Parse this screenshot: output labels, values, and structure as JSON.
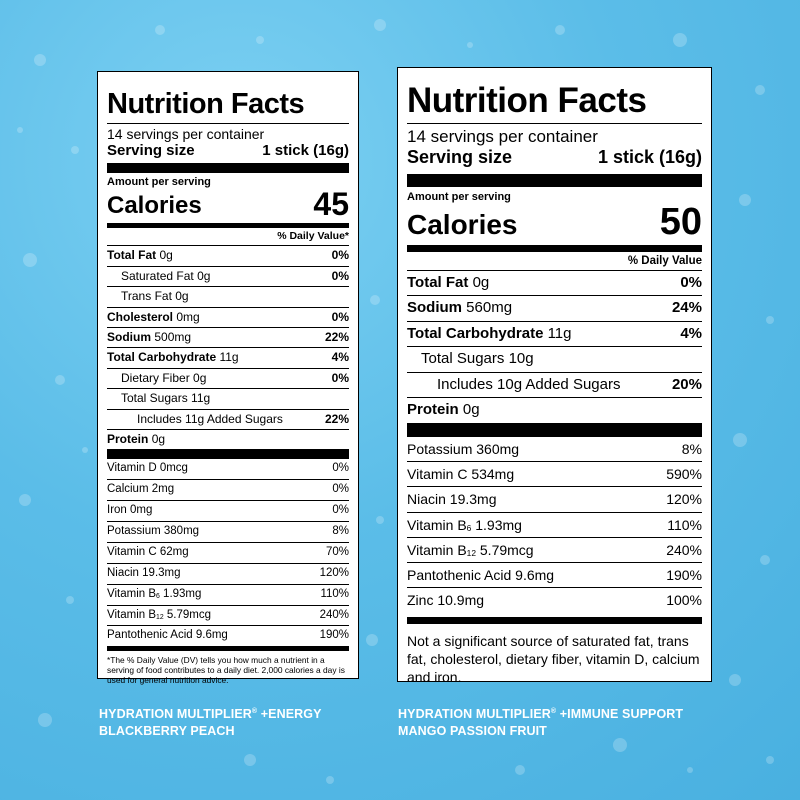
{
  "labels": [
    {
      "title": "Nutrition Facts",
      "servings": "14 servings per container",
      "serving_size_label": "Serving size",
      "serving_size_value": "1 stick (16g)",
      "amount_per_serving": "Amount per serving",
      "calories_label": "Calories",
      "calories_value": "45",
      "daily_value_header": "% Daily Value*",
      "nutrients": [
        {
          "name": "Total Fat",
          "amount": "0g",
          "dv": "0%"
        },
        {
          "name": "Saturated Fat",
          "amount": "0g",
          "dv": "0%"
        },
        {
          "name": "Trans Fat",
          "amount": "0g",
          "dv": ""
        },
        {
          "name": "Cholesterol",
          "amount": "0mg",
          "dv": "0%"
        },
        {
          "name": "Sodium",
          "amount": "500mg",
          "dv": "22%"
        },
        {
          "name": "Total Carbohydrate",
          "amount": "11g",
          "dv": "4%"
        },
        {
          "name": "Dietary Fiber",
          "amount": "0g",
          "dv": "0%"
        },
        {
          "name": "Total Sugars",
          "amount": "11g",
          "dv": ""
        },
        {
          "name": "Includes 11g Added Sugars",
          "amount": "",
          "dv": "22%"
        },
        {
          "name": "Protein",
          "amount": "0g",
          "dv": ""
        }
      ],
      "vitamins": [
        {
          "name": "Vitamin D 0mcg",
          "dv": "0%"
        },
        {
          "name": "Calcium 2mg",
          "dv": "0%"
        },
        {
          "name": "Iron 0mg",
          "dv": "0%"
        },
        {
          "name": "Potassium 380mg",
          "dv": "8%"
        },
        {
          "name": "Vitamin C 62mg",
          "dv": "70%"
        },
        {
          "name": "Niacin 19.3mg",
          "dv": "120%"
        },
        {
          "pre": "Vitamin B",
          "sub": "6",
          "post": " 1.93mg",
          "dv": "110%"
        },
        {
          "pre": "Vitamin B",
          "sub": "12",
          "post": " 5.79mcg",
          "dv": "240%"
        },
        {
          "name": "Pantothenic Acid 9.6mg",
          "dv": "190%"
        }
      ],
      "footnote": "*The % Daily Value (DV) tells you how much a nutrient in a serving of food contributes to a daily diet. 2,000 calories a day is used for general nutrition advice."
    },
    {
      "title": "Nutrition Facts",
      "servings": "14 servings per container",
      "serving_size_label": "Serving size",
      "serving_size_value": "1 stick (16g)",
      "amount_per_serving": "Amount per serving",
      "calories_label": "Calories",
      "calories_value": "50",
      "daily_value_header": "% Daily Value",
      "nutrients": [
        {
          "name": "Total Fat",
          "amount": "0g",
          "dv": "0%"
        },
        {
          "name": "Sodium",
          "amount": "560mg",
          "dv": "24%"
        },
        {
          "name": "Total Carbohydrate",
          "amount": "11g",
          "dv": "4%"
        },
        {
          "name": "Total Sugars",
          "amount": "10g",
          "dv": ""
        },
        {
          "name": "Includes 10g Added Sugars",
          "amount": "",
          "dv": "20%"
        },
        {
          "name": "Protein",
          "amount": "0g",
          "dv": ""
        }
      ],
      "vitamins": [
        {
          "name": "Potassium 360mg",
          "dv": "8%"
        },
        {
          "name": "Vitamin C 534mg",
          "dv": "590%"
        },
        {
          "name": "Niacin 19.3mg",
          "dv": "120%"
        },
        {
          "pre": "Vitamin B",
          "sub": "6",
          "post": " 1.93mg",
          "dv": "110%"
        },
        {
          "pre": "Vitamin B",
          "sub": "12",
          "post": " 5.79mcg",
          "dv": "240%"
        },
        {
          "name": "Pantothenic Acid 9.6mg",
          "dv": "190%"
        },
        {
          "name": "Zinc 10.9mg",
          "dv": "100%"
        }
      ],
      "footnote": "Not a significant source of saturated fat, trans fat, cholesterol, dietary fiber, vitamin D, calcium and iron."
    }
  ],
  "captions": [
    {
      "brand": "HYDRATION MULTIPLIER",
      "mark": "®",
      "variant": " +ENERGY",
      "flavor": "BLACKBERRY PEACH"
    },
    {
      "brand": "HYDRATION MULTIPLIER",
      "mark": "®",
      "variant": " +IMMUNE SUPPORT",
      "flavor": "MANGO PASSION FRUIT"
    }
  ],
  "colors": {
    "background": "#5bbde8",
    "caption_text": "#ffffff"
  }
}
